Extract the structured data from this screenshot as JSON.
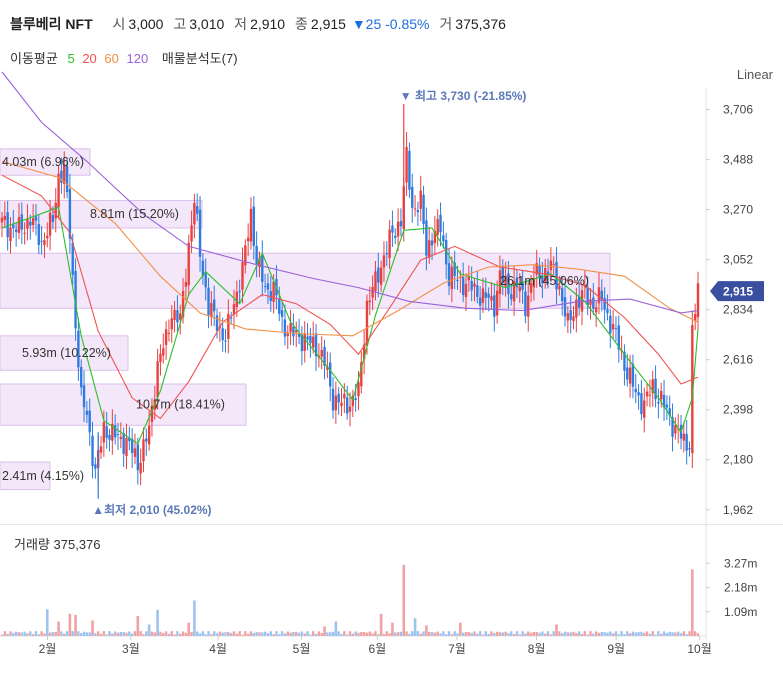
{
  "header": {
    "name": "블루베리 NFT",
    "open_label": "시",
    "open": "3,000",
    "high_label": "고",
    "high": "3,010",
    "low_label": "저",
    "low": "2,910",
    "close_label": "종",
    "close": "2,915",
    "change": "▼25 -0.85%",
    "volume_label": "거",
    "volume": "375,376"
  },
  "legend": {
    "title": "이동평균",
    "ma5": "5",
    "ma20": "20",
    "ma60": "60",
    "ma120": "120",
    "profile": "매물분석도(7)"
  },
  "scale_mode": "Linear",
  "volume_panel": {
    "title": "거래량",
    "value": "375,376"
  },
  "colors": {
    "up": "#e8403f",
    "down": "#2f7be0",
    "ma5": "#2bbf2b",
    "ma20": "#ef5350",
    "ma60": "#f29146",
    "ma120": "#9a63d8",
    "profile_fill": "#f2e3f8",
    "profile_stroke": "#d6b5e6",
    "price_tag": "#3b4fa0"
  },
  "chart_data": {
    "type": "candlestick",
    "y_ticks": [
      "3,706",
      "3,488",
      "3,270",
      "3,052",
      "2,834",
      "2,616",
      "2,398",
      "2,180",
      "1,962"
    ],
    "ylim": [
      1900,
      3800
    ],
    "x_ticks": [
      "2월",
      "3월",
      "4월",
      "5월",
      "6월",
      "7월",
      "8월",
      "9월",
      "10월"
    ],
    "current_price": "2,915",
    "max_label": "최고 3,730 (-21.85%)",
    "min_label": "최저 2,010 (45.02%)",
    "volume_ticks": [
      "3.27m",
      "2.18m",
      "1.09m"
    ],
    "volume_ylim": [
      0,
      3600000
    ],
    "volume_profile": [
      {
        "label": "4.03m (6.96%)",
        "from": 3420,
        "to": 3535
      },
      {
        "label": "8.81m (15.20%)",
        "from": 3190,
        "to": 3310
      },
      {
        "label": "26.1m (45.06%)",
        "from": 2840,
        "to": 3080
      },
      {
        "label": "5.93m (10.22%)",
        "from": 2570,
        "to": 2720
      },
      {
        "label": "10.7m (18.41%)",
        "from": 2330,
        "to": 2510
      },
      {
        "label": "2.41m (4.15%)",
        "from": 2050,
        "to": 2170
      }
    ],
    "profile_widths": [
      90,
      202,
      610,
      128,
      246,
      50
    ],
    "price_points": [
      [
        0,
        3210
      ],
      [
        6,
        3180
      ],
      [
        10,
        3230
      ],
      [
        14,
        3130
      ],
      [
        18,
        3220
      ],
      [
        20,
        3420
      ],
      [
        22,
        3440
      ],
      [
        24,
        3170
      ],
      [
        26,
        2780
      ],
      [
        28,
        2440
      ],
      [
        30,
        2380
      ],
      [
        33,
        2120
      ],
      [
        36,
        2320
      ],
      [
        40,
        2280
      ],
      [
        44,
        2260
      ],
      [
        48,
        2170
      ],
      [
        52,
        2300
      ],
      [
        55,
        2600
      ],
      [
        58,
        2700
      ],
      [
        60,
        2830
      ],
      [
        63,
        2780
      ],
      [
        66,
        3120
      ],
      [
        68,
        3300
      ],
      [
        70,
        3090
      ],
      [
        73,
        2840
      ],
      [
        76,
        2780
      ],
      [
        79,
        2700
      ],
      [
        82,
        2870
      ],
      [
        85,
        3000
      ],
      [
        88,
        3260
      ],
      [
        90,
        3040
      ],
      [
        93,
        2930
      ],
      [
        96,
        2920
      ],
      [
        99,
        2780
      ],
      [
        102,
        2730
      ],
      [
        105,
        2720
      ],
      [
        108,
        2690
      ],
      [
        111,
        2680
      ],
      [
        114,
        2600
      ],
      [
        117,
        2450
      ],
      [
        120,
        2420
      ],
      [
        123,
        2430
      ],
      [
        126,
        2470
      ],
      [
        129,
        2860
      ],
      [
        132,
        2950
      ],
      [
        135,
        3070
      ],
      [
        138,
        3160
      ],
      [
        141,
        3230
      ],
      [
        143,
        3490
      ],
      [
        145,
        3280
      ],
      [
        148,
        3300
      ],
      [
        150,
        3090
      ],
      [
        152,
        3160
      ],
      [
        155,
        3190
      ],
      [
        158,
        2980
      ],
      [
        162,
        2960
      ],
      [
        166,
        2930
      ],
      [
        170,
        2890
      ],
      [
        174,
        2860
      ],
      [
        176,
        2980
      ],
      [
        179,
        2920
      ],
      [
        182,
        2940
      ],
      [
        185,
        2860
      ],
      [
        188,
        2980
      ],
      [
        191,
        2990
      ],
      [
        194,
        3020
      ],
      [
        197,
        2940
      ],
      [
        200,
        2760
      ],
      [
        203,
        2870
      ],
      [
        206,
        2900
      ],
      [
        209,
        2860
      ],
      [
        212,
        2880
      ],
      [
        215,
        2780
      ],
      [
        218,
        2680
      ],
      [
        221,
        2560
      ],
      [
        224,
        2470
      ],
      [
        227,
        2420
      ],
      [
        230,
        2500
      ],
      [
        233,
        2440
      ],
      [
        236,
        2360
      ],
      [
        239,
        2300
      ],
      [
        241,
        2250
      ],
      [
        243,
        2260
      ],
      [
        244,
        2740
      ],
      [
        246,
        2915
      ]
    ],
    "ma": {
      "ma5": [
        [
          0,
          3190
        ],
        [
          20,
          3280
        ],
        [
          28,
          2720
        ],
        [
          36,
          2350
        ],
        [
          48,
          2250
        ],
        [
          56,
          2480
        ],
        [
          66,
          2900
        ],
        [
          72,
          3000
        ],
        [
          84,
          2860
        ],
        [
          92,
          3080
        ],
        [
          102,
          2780
        ],
        [
          116,
          2570
        ],
        [
          124,
          2440
        ],
        [
          132,
          2810
        ],
        [
          142,
          3180
        ],
        [
          152,
          3190
        ],
        [
          162,
          2990
        ],
        [
          178,
          2930
        ],
        [
          194,
          2990
        ],
        [
          206,
          2870
        ],
        [
          220,
          2640
        ],
        [
          232,
          2450
        ],
        [
          240,
          2300
        ],
        [
          244,
          2450
        ],
        [
          246,
          2750
        ]
      ],
      "ma20": [
        [
          0,
          3420
        ],
        [
          14,
          3330
        ],
        [
          24,
          3170
        ],
        [
          34,
          2740
        ],
        [
          46,
          2450
        ],
        [
          56,
          2360
        ],
        [
          66,
          2520
        ],
        [
          78,
          2780
        ],
        [
          92,
          2900
        ],
        [
          104,
          2860
        ],
        [
          116,
          2770
        ],
        [
          126,
          2640
        ],
        [
          138,
          2860
        ],
        [
          148,
          3050
        ],
        [
          160,
          3110
        ],
        [
          176,
          3020
        ],
        [
          192,
          2990
        ],
        [
          206,
          2940
        ],
        [
          220,
          2800
        ],
        [
          232,
          2640
        ],
        [
          240,
          2510
        ],
        [
          246,
          2540
        ]
      ],
      "ma60": [
        [
          0,
          3480
        ],
        [
          20,
          3410
        ],
        [
          40,
          3210
        ],
        [
          56,
          2980
        ],
        [
          70,
          2820
        ],
        [
          86,
          2750
        ],
        [
          104,
          2730
        ],
        [
          124,
          2720
        ],
        [
          140,
          2830
        ],
        [
          156,
          2950
        ],
        [
          172,
          3020
        ],
        [
          188,
          3030
        ],
        [
          204,
          3010
        ],
        [
          220,
          2980
        ],
        [
          236,
          2840
        ],
        [
          246,
          2780
        ]
      ],
      "ma120": [
        [
          0,
          3870
        ],
        [
          14,
          3650
        ],
        [
          30,
          3480
        ],
        [
          50,
          3250
        ],
        [
          66,
          3110
        ],
        [
          90,
          3030
        ],
        [
          110,
          2970
        ],
        [
          126,
          2930
        ],
        [
          144,
          2870
        ],
        [
          164,
          2840
        ],
        [
          184,
          2830
        ],
        [
          204,
          2870
        ],
        [
          222,
          2880
        ],
        [
          240,
          2820
        ],
        [
          246,
          2830
        ]
      ]
    },
    "volume_spikes": [
      [
        16,
        1200000,
        "down"
      ],
      [
        20,
        650000,
        "up"
      ],
      [
        24,
        1000000,
        "up"
      ],
      [
        26,
        950000,
        "up"
      ],
      [
        32,
        700000,
        "up"
      ],
      [
        48,
        900000,
        "up"
      ],
      [
        52,
        520000,
        "down"
      ],
      [
        55,
        1180000,
        "down"
      ],
      [
        66,
        600000,
        "up"
      ],
      [
        68,
        1600000,
        "down"
      ],
      [
        114,
        430000,
        "up"
      ],
      [
        118,
        650000,
        "down"
      ],
      [
        134,
        1000000,
        "up"
      ],
      [
        138,
        600000,
        "up"
      ],
      [
        142,
        3200000,
        "up"
      ],
      [
        146,
        800000,
        "down"
      ],
      [
        150,
        480000,
        "up"
      ],
      [
        162,
        600000,
        "up"
      ],
      [
        196,
        520000,
        "up"
      ],
      [
        244,
        3000000,
        "up"
      ]
    ]
  }
}
